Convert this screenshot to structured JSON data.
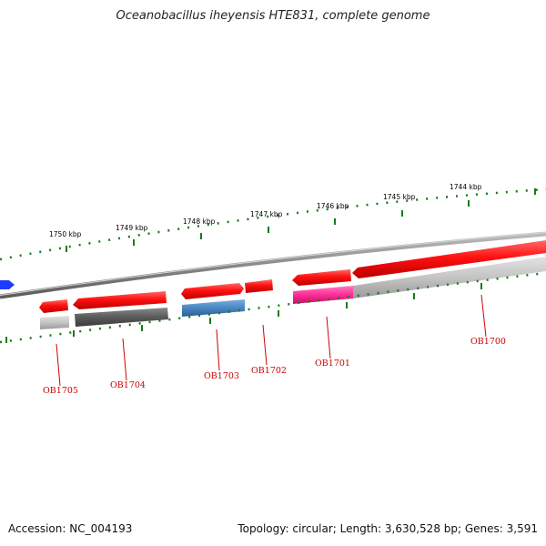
{
  "title": "Oceanobacillus iheyensis HTE831, complete genome",
  "footer": {
    "accession": "Accession: NC_004193",
    "summary": "Topology: circular; Length: 3,630,528 bp; Genes: 3,591"
  },
  "kbp_labels": [
    "1750 kbp",
    "1749 kbp",
    "1748 kbp",
    "1747 kbp",
    "1746 kbp",
    "1745 kbp",
    "1744 kbp"
  ],
  "genes": [
    "OB1705",
    "OB1704",
    "OB1703",
    "OB1702",
    "OB1701",
    "OB1700"
  ],
  "colors": {
    "forward_feature": "#ee0000",
    "reverse_feature_highlight": "#ff2d96",
    "backbone": "#808080",
    "tick": "#1a7a1a",
    "label": "#cc0000",
    "blue_feature": "#1e3cff",
    "steelblue_feature": "#4a86c0"
  }
}
